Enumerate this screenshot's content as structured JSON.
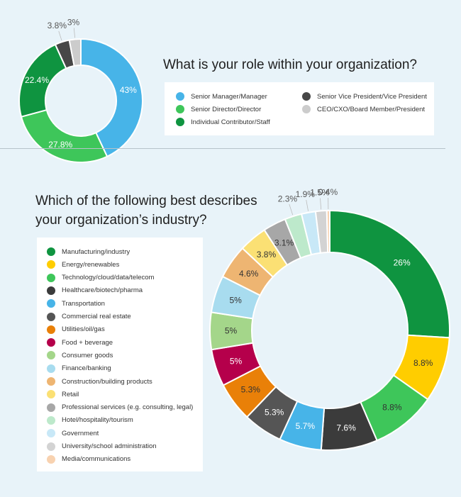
{
  "chart_data": [
    {
      "type": "pie",
      "title": "What is your role within your organization?",
      "categories": [
        "Senior Manager/Manager",
        "Senior Director/Director",
        "Individual Contributor/Staff",
        "Senior Vice President/Vice President",
        "CEO/CXO/Board Member/President"
      ],
      "values": [
        43,
        27.8,
        22.4,
        3.8,
        3
      ],
      "data_labels": [
        "43%",
        "27.8%",
        "22.4%",
        "3.8%",
        "3%"
      ],
      "colors": [
        "#47b4e8",
        "#3ec65a",
        "#0f9440",
        "#474747",
        "#cccccc"
      ]
    },
    {
      "type": "pie",
      "title": "Which of the following best describes your organization’s industry?",
      "categories": [
        "Manufacturing/industry",
        "Energy/renewables",
        "Technology/cloud/data/telecom",
        "Healthcare/biotech/pharma",
        "Transportation",
        "Commercial real estate",
        "Utilities/oil/gas",
        "Food + beverage",
        "Consumer goods",
        "Finance/banking",
        "Construction/building products",
        "Retail",
        "Professional services (e.g. consulting, legal)",
        "Hotel/hospitality/tourism",
        "Government",
        "University/school administration",
        "Media/communications"
      ],
      "values": [
        26,
        8.8,
        8.8,
        7.6,
        5.7,
        5.3,
        5.3,
        5,
        5,
        5,
        4.6,
        3.8,
        3.1,
        2.3,
        1.9,
        1.5,
        0.4
      ],
      "data_labels": [
        "26%",
        "8.8%",
        "8.8%",
        "7.6%",
        "5.7%",
        "5.3%",
        "5.3%",
        "5%",
        "5%",
        "5%",
        "4.6%",
        "3.8%",
        "3.1%",
        "2.3%",
        "1.9%",
        "1.5%",
        "0.4%"
      ],
      "colors": [
        "#0f9440",
        "#ffcd00",
        "#3ec65a",
        "#3b3b3b",
        "#47b4e8",
        "#555555",
        "#e98008",
        "#b5004b",
        "#a4d68a",
        "#a8dcef",
        "#eeb572",
        "#fbe074",
        "#a7a7a7",
        "#bde9cb",
        "#c8e8f7",
        "#d3d3d3",
        "#f8d2b0"
      ],
      "label_colors": [
        "#ffffff",
        "#333333",
        "#333333",
        "#ffffff",
        "#ffffff",
        "#ffffff",
        "#333333",
        "#ffffff",
        "#333333",
        "#333333",
        "#333333",
        "#333333",
        "#333333",
        "#333333",
        "#333333",
        "#333333",
        "#333333"
      ],
      "outside_labels": [
        false,
        false,
        false,
        false,
        false,
        false,
        false,
        false,
        false,
        false,
        false,
        false,
        false,
        true,
        true,
        true,
        true
      ]
    }
  ]
}
